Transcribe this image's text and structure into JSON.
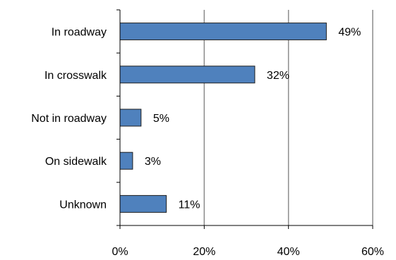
{
  "chart_data": {
    "type": "bar",
    "orientation": "horizontal",
    "title": "",
    "xlabel": "",
    "ylabel": "",
    "categories": [
      "In roadway",
      "In crosswalk",
      "Not in roadway",
      "On sidewalk",
      "Unknown"
    ],
    "values": [
      49,
      32,
      5,
      3,
      11
    ],
    "value_labels": [
      "49%",
      "32%",
      "5%",
      "3%",
      "11%"
    ],
    "xlim": [
      0,
      60
    ],
    "x_ticks": [
      0,
      20,
      40,
      60
    ],
    "x_tick_labels": [
      "0%",
      "20%",
      "40%",
      "60%"
    ],
    "grid": "vertical",
    "legend": "none",
    "colors": {
      "bar_fill": "#4f81bd",
      "bar_stroke": "#1f1f1f",
      "grid": "#8c8c8c",
      "axis": "#000000"
    }
  }
}
